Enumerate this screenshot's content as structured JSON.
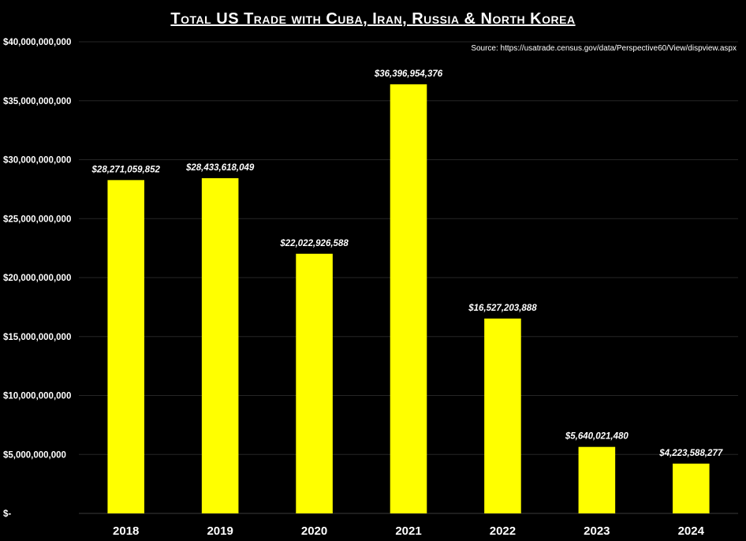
{
  "colors": {
    "background": "#000000",
    "bar": "#FFFF00",
    "text": "#FFFFFF",
    "grid": "#262626"
  },
  "chart_data": {
    "type": "bar",
    "title": "Total US Trade with Cuba, Iran, Russia & North Korea",
    "source": "Source: https://usatrade.census.gov/data/Perspective60/View/dispview.aspx",
    "categories": [
      "2018",
      "2019",
      "2020",
      "2021",
      "2022",
      "2023",
      "2024"
    ],
    "values": [
      28271059852,
      28433618049,
      22022926588,
      36396954376,
      16527203888,
      5640021480,
      4223588277
    ],
    "data_labels": [
      "$28,271,059,852",
      "$28,433,618,049",
      "$22,022,926,588",
      "$36,396,954,376",
      "$16,527,203,888",
      "$5,640,021,480",
      "$4,223,588,277"
    ],
    "ylim": [
      0,
      40000000000
    ],
    "y_ticks": [
      0,
      5000000000,
      10000000000,
      15000000000,
      20000000000,
      25000000000,
      30000000000,
      35000000000,
      40000000000
    ],
    "y_tick_labels": [
      "$-",
      "$5,000,000,000",
      "$10,000,000,000",
      "$15,000,000,000",
      "$20,000,000,000",
      "$25,000,000,000",
      "$30,000,000,000",
      "$35,000,000,000",
      "$40,000,000,000"
    ],
    "xlabel": "",
    "ylabel": "",
    "grid": true,
    "legend": "none"
  }
}
